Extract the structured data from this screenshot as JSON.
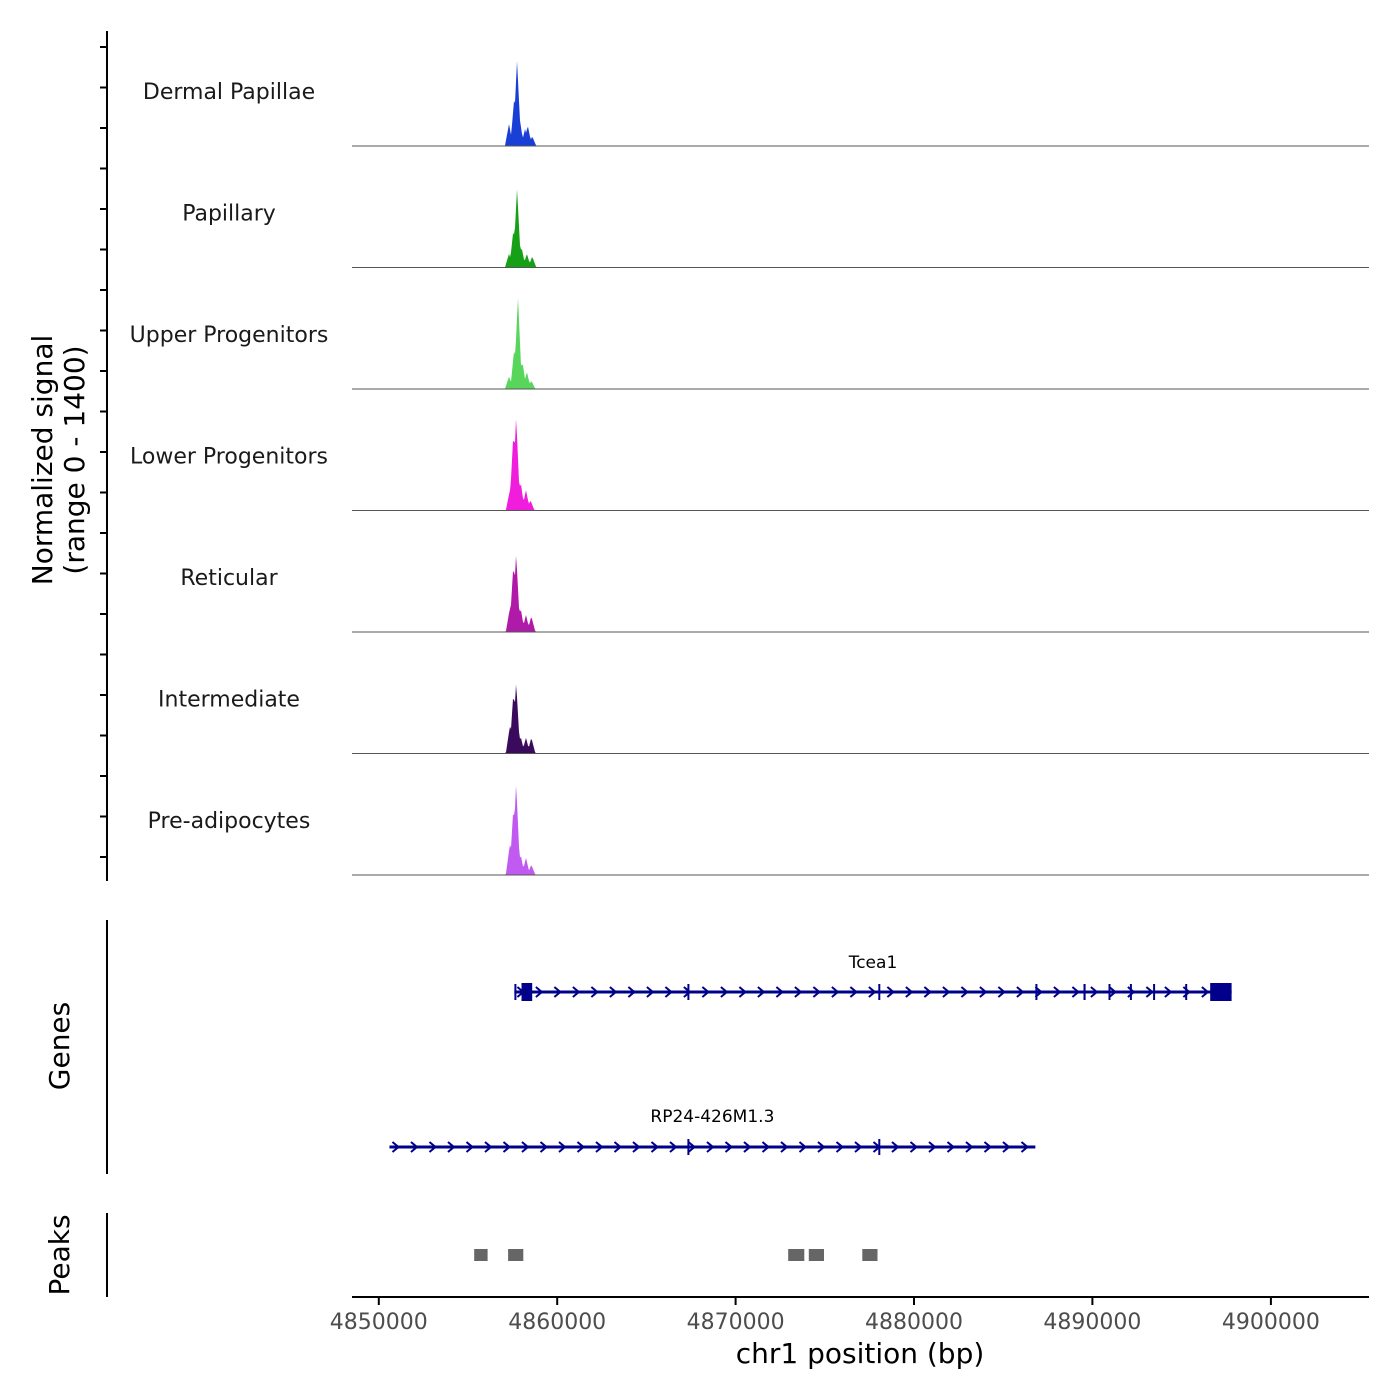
{
  "chart_data": {
    "type": "genome-coverage",
    "chromosome": "chr1",
    "region": [
      4848500,
      4905500
    ],
    "y_axis_title": [
      "Normalized signal",
      "(range 0 - 1400)"
    ],
    "y_range": [
      0,
      1400
    ],
    "x_axis_title": "chr1 position (bp)",
    "x_ticks": [
      4850000,
      4860000,
      4870000,
      4880000,
      4890000,
      4900000
    ],
    "x_tick_labels": [
      "4850000",
      "4860000",
      "4870000",
      "4880000",
      "4890000",
      "4900000"
    ],
    "tracks": [
      {
        "name": "Dermal Papillae",
        "color": "#1a3fd6",
        "peaks": [
          [
            4857300,
            320
          ],
          [
            4857600,
            720
          ],
          [
            4857750,
            1250
          ],
          [
            4857900,
            400
          ],
          [
            4858200,
            250
          ],
          [
            4858350,
            300
          ],
          [
            4858600,
            140
          ]
        ]
      },
      {
        "name": "Papillary",
        "color": "#16a016",
        "peaks": [
          [
            4857300,
            200
          ],
          [
            4857550,
            560
          ],
          [
            4857750,
            1150
          ],
          [
            4858000,
            300
          ],
          [
            4858300,
            200
          ],
          [
            4858600,
            160
          ]
        ]
      },
      {
        "name": "Upper Progenitors",
        "color": "#58d65c",
        "peaks": [
          [
            4857300,
            180
          ],
          [
            4857600,
            600
          ],
          [
            4857800,
            1350
          ],
          [
            4858050,
            400
          ],
          [
            4858300,
            250
          ],
          [
            4858550,
            120
          ]
        ]
      },
      {
        "name": "Lower Progenitors",
        "color": "#f01edc",
        "peaks": [
          [
            4857350,
            300
          ],
          [
            4857550,
            1150
          ],
          [
            4857700,
            1380
          ],
          [
            4857950,
            420
          ],
          [
            4858250,
            300
          ],
          [
            4858500,
            150
          ]
        ]
      },
      {
        "name": "Reticular",
        "color": "#b01aa8",
        "peaks": [
          [
            4857350,
            350
          ],
          [
            4857550,
            1000
          ],
          [
            4857700,
            1150
          ],
          [
            4857950,
            350
          ],
          [
            4858250,
            250
          ],
          [
            4858550,
            230
          ]
        ]
      },
      {
        "name": "Intermediate",
        "color": "#3a0a5c",
        "peaks": [
          [
            4857350,
            400
          ],
          [
            4857550,
            900
          ],
          [
            4857700,
            1040
          ],
          [
            4857950,
            250
          ],
          [
            4858250,
            230
          ],
          [
            4858550,
            230
          ]
        ]
      },
      {
        "name": "Pre-adipocytes",
        "color": "#c15af0",
        "peaks": [
          [
            4857350,
            450
          ],
          [
            4857550,
            1000
          ],
          [
            4857700,
            1350
          ],
          [
            4857950,
            300
          ],
          [
            4858250,
            250
          ],
          [
            4858550,
            150
          ]
        ]
      }
    ],
    "genes_track_label": "Genes",
    "genes": [
      {
        "name": "Tcea1",
        "start": 4857600,
        "end": 4897800,
        "color": "#00008b",
        "exons": [
          [
            4857600,
            4857700
          ],
          [
            4858000,
            4858600
          ],
          [
            4867300,
            4867380
          ],
          [
            4878000,
            4878080
          ],
          [
            4886800,
            4886880
          ],
          [
            4889500,
            4889620
          ],
          [
            4890900,
            4890980
          ],
          [
            4892100,
            4892180
          ],
          [
            4893400,
            4893480
          ],
          [
            4895200,
            4895280
          ],
          [
            4896600,
            4897800
          ]
        ]
      },
      {
        "name": "RP24-426M1.3",
        "start": 4850600,
        "end": 4886800,
        "color": "#00008b",
        "exons": [
          [
            4867300,
            4867380
          ],
          [
            4878000,
            4878080
          ]
        ]
      }
    ],
    "peaks_track_label": "Peaks",
    "peak_regions": [
      [
        4855350,
        4856100
      ],
      [
        4857250,
        4858100
      ],
      [
        4872950,
        4873850
      ],
      [
        4874100,
        4874950
      ],
      [
        4877100,
        4877950
      ]
    ],
    "peak_color": "#666666"
  }
}
